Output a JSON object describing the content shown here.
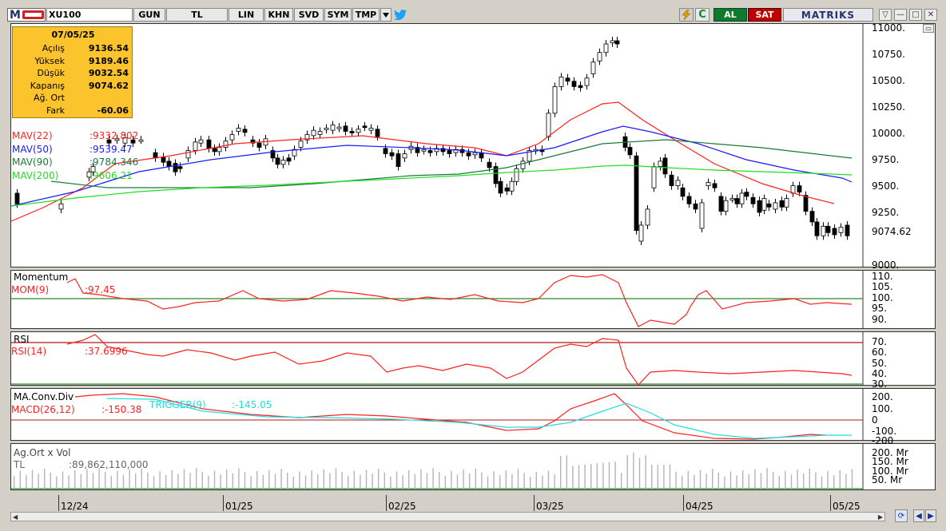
{
  "toolbar": {
    "logo_letter": "M",
    "symbol": "XU100",
    "buttons": [
      "GUN",
      "TL",
      "LIN",
      "KHN",
      "SVD",
      "SYM",
      "TMP"
    ],
    "buy_label": "AL",
    "sell_label": "SAT",
    "brand": "MATRIKS"
  },
  "info_box": {
    "date": "07/05/25",
    "rows": [
      {
        "label": "Açılış",
        "value": "9136.54"
      },
      {
        "label": "Yüksek",
        "value": "9189.46"
      },
      {
        "label": "Düşük",
        "value": "9032.54"
      },
      {
        "label": "Kapanış",
        "value": "9074.62"
      },
      {
        "label": "Ağ. Ort",
        "value": ""
      },
      {
        "label": "Fark",
        "value": "-60.06"
      }
    ]
  },
  "main_chart": {
    "moving_averages": [
      {
        "label": "MAV(22)",
        "value": ":9332.802",
        "color": "#ff2020"
      },
      {
        "label": "MAV(50)",
        "value": ":9539.47",
        "color": "#1a1aff"
      },
      {
        "label": "MAV(90)",
        "value": ":9784.346",
        "color": "#1a7a3a"
      },
      {
        "label": "MAV(200)",
        "value": ":9606.21",
        "color": "#20dd20"
      }
    ],
    "y_ticks": [
      "11000.",
      "10750.",
      "10500.",
      "10250.",
      "10000.",
      "9750.",
      "9500.",
      "9250.",
      "9000."
    ],
    "last_price": "9074.62"
  },
  "momentum": {
    "title": "Momentum",
    "label": "MOM(9)",
    "value": ":97.45",
    "y_ticks": [
      "110.",
      "105.",
      "100.",
      "95.",
      "90."
    ]
  },
  "rsi": {
    "title": "RSI",
    "label": "RSI(14)",
    "value": ":37.6996",
    "y_ticks": [
      "70.",
      "60.",
      "50.",
      "40.",
      "30."
    ]
  },
  "macd": {
    "title": "MA.Conv.Div",
    "label": "MACD(26,12)",
    "value": ":-150.38",
    "trigger_label": "TRIGGER(9)",
    "trigger_value": ":-145.05",
    "y_ticks": [
      "200.",
      "100.",
      "0",
      "-100.",
      "-200"
    ]
  },
  "volume": {
    "title": "Ag.Ort x Vol",
    "label": "TL",
    "value": ":89,862,110,000",
    "y_ticks": [
      "200. Mr",
      "150. Mr",
      "100. Mr",
      "50. Mr"
    ]
  },
  "dates": [
    "12/24",
    "01/25",
    "02/25",
    "03/25",
    "04/25",
    "05/25"
  ],
  "colors": {
    "up_candle": "#ffffff",
    "down_candle": "#000000",
    "info_bg": "#fcc42c",
    "macd": "#ff2020",
    "trigger": "#22dddd",
    "ref_red": "#b01818",
    "ref_green": "#2a8a2a"
  }
}
